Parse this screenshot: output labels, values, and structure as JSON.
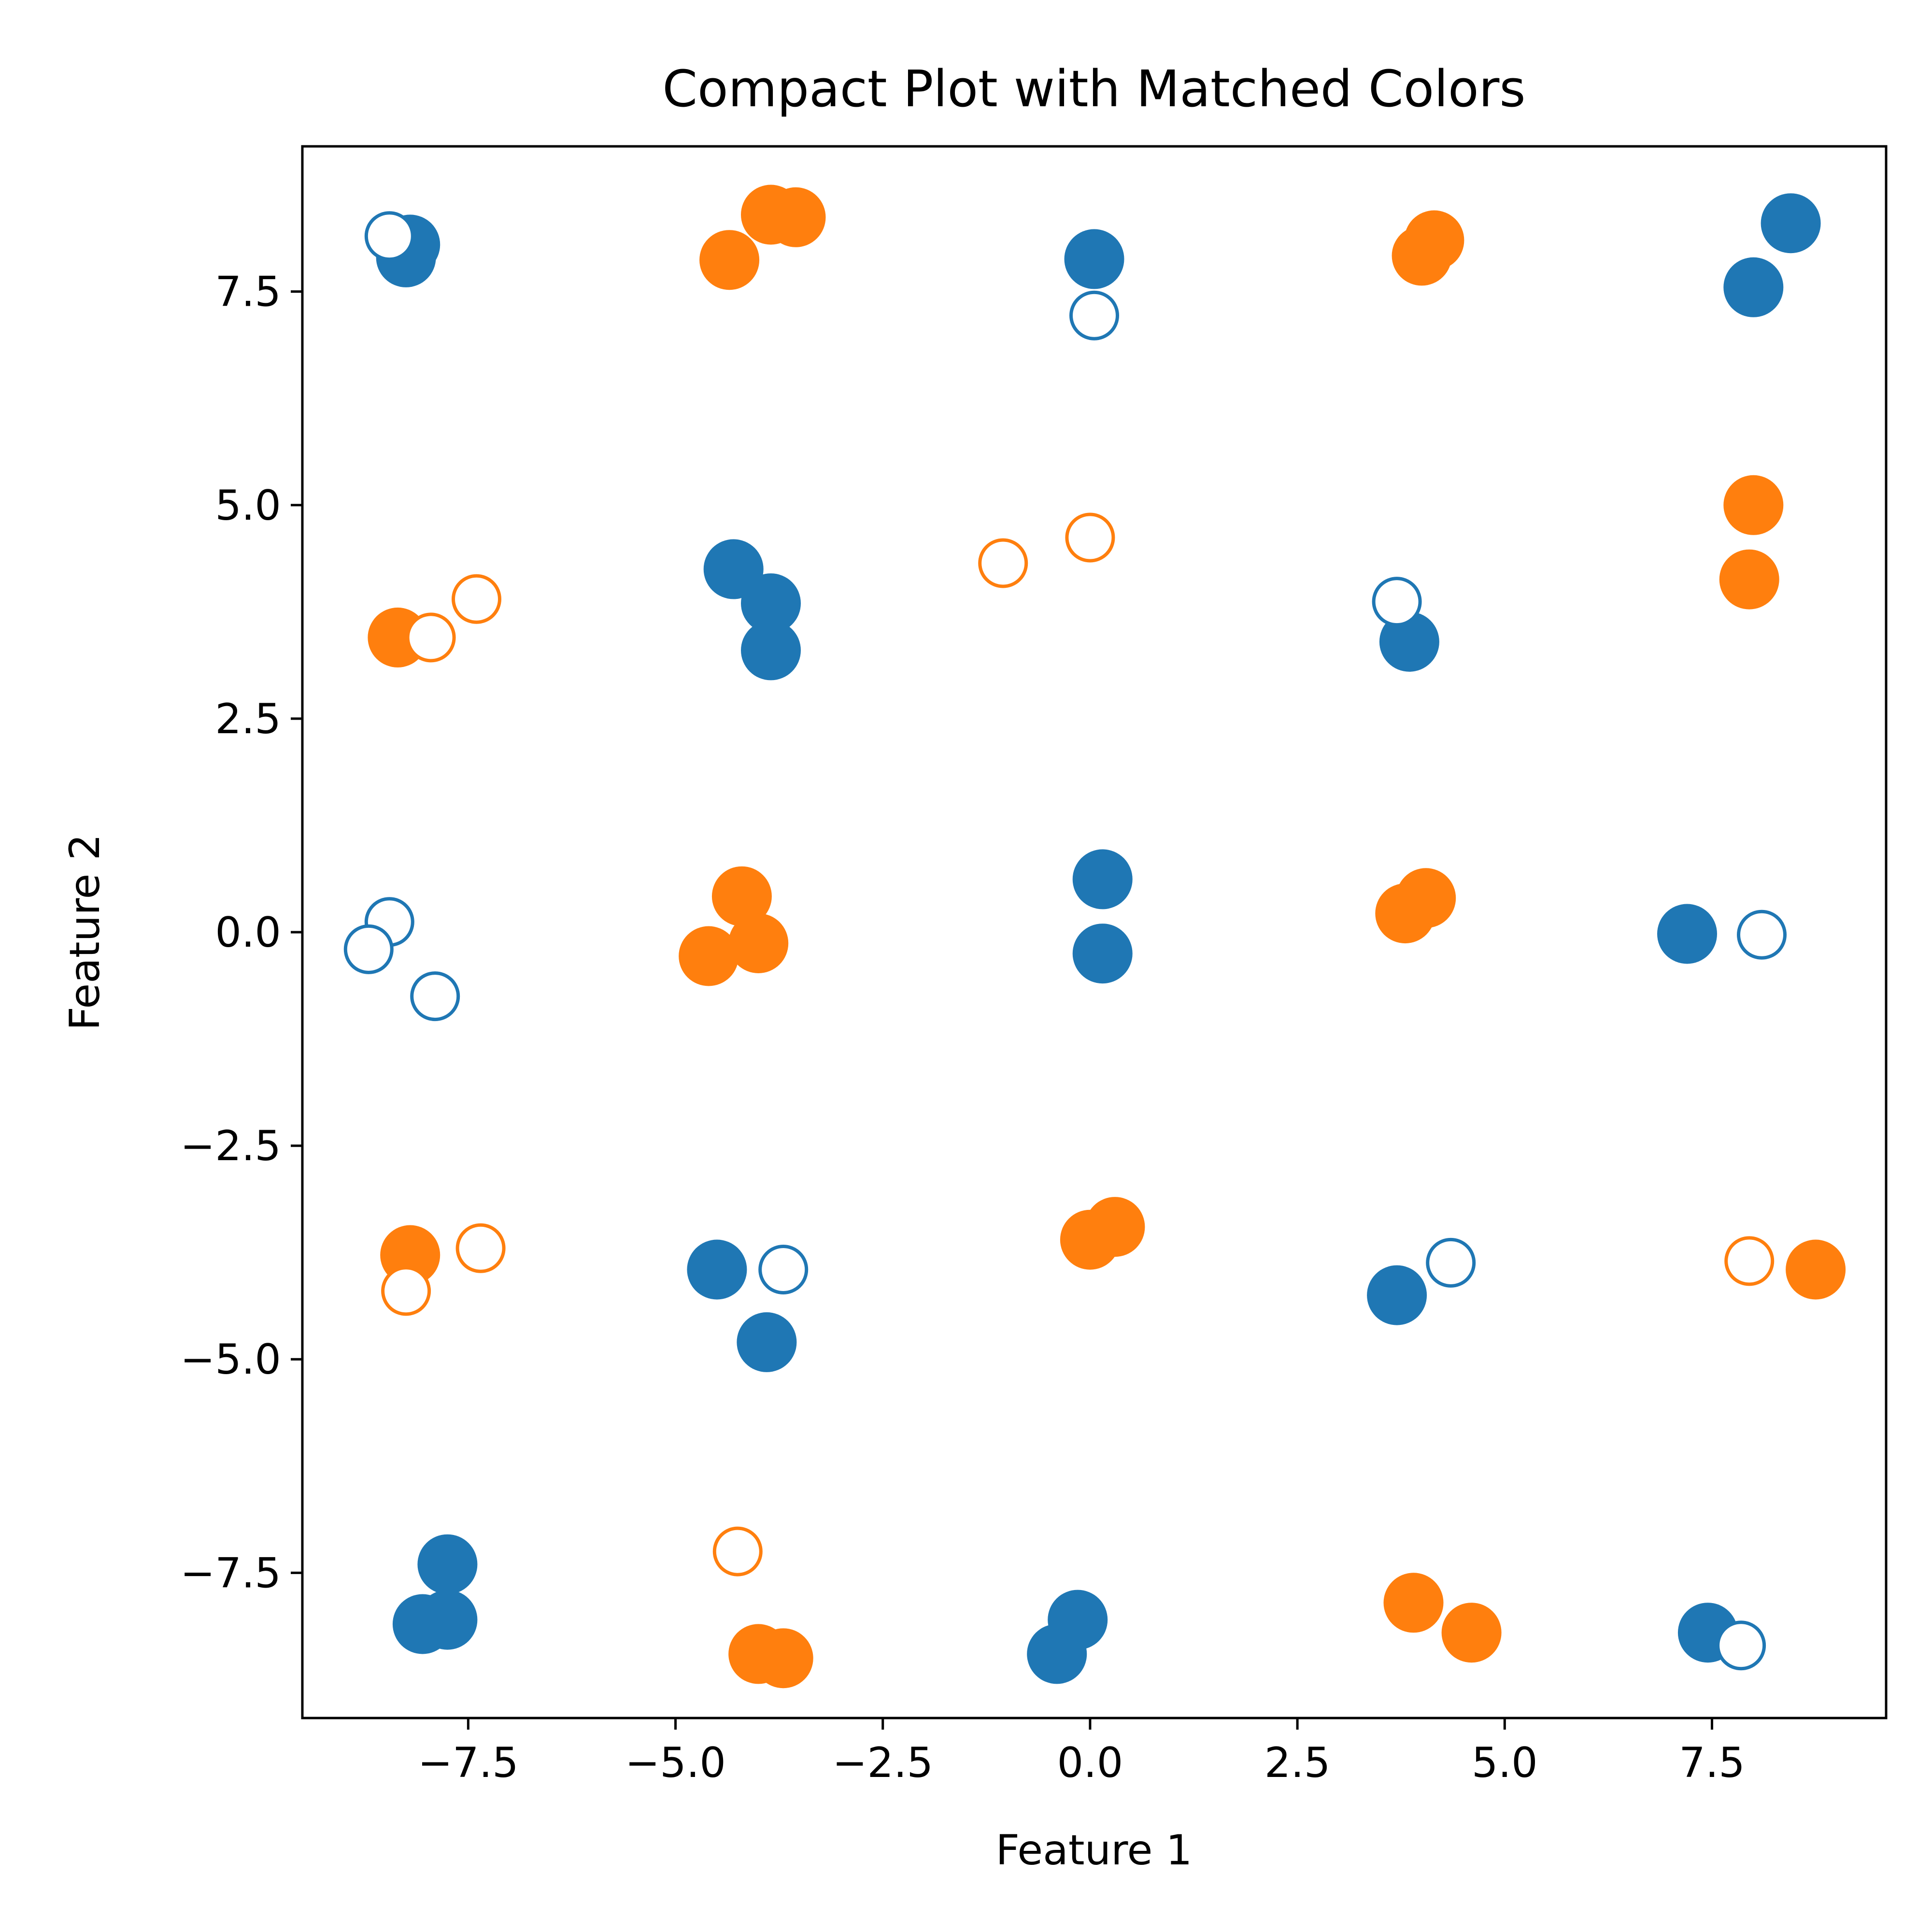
{
  "chart_data": {
    "type": "scatter",
    "title": "Compact Plot with Matched Colors",
    "xlabel": "Feature 1",
    "ylabel": "Feature 2",
    "xlim": [
      -9.5,
      9.6
    ],
    "ylim": [
      -9.2,
      9.2
    ],
    "grid": false,
    "xticks": [
      -7.5,
      -5.0,
      -2.5,
      0.0,
      2.5,
      5.0,
      7.5
    ],
    "yticks": [
      -7.5,
      -5.0,
      -2.5,
      0.0,
      2.5,
      5.0,
      7.5
    ],
    "xtick_labels": [
      "−7.5",
      "−5.0",
      "−2.5",
      "0.0",
      "2.5",
      "5.0",
      "7.5"
    ],
    "ytick_labels": [
      "−7.5",
      "−5.0",
      "−2.5",
      "0.0",
      "2.5",
      "5.0",
      "7.5"
    ],
    "colors": {
      "blue": "#1f77b4",
      "orange": "#ff7f0e"
    },
    "series": [
      {
        "color": "#1f77b4",
        "marker": "filled",
        "points": [
          [
            -8.2,
            8.05
          ],
          [
            -8.25,
            7.9
          ],
          [
            0.05,
            7.88
          ],
          [
            8.45,
            8.3
          ],
          [
            8.0,
            7.55
          ],
          [
            -4.3,
            4.25
          ],
          [
            -3.85,
            3.85
          ],
          [
            -3.85,
            3.3
          ],
          [
            3.85,
            3.4
          ],
          [
            0.15,
            0.62
          ],
          [
            0.15,
            -0.25
          ],
          [
            7.2,
            -0.02
          ],
          [
            -4.5,
            -3.95
          ],
          [
            -3.9,
            -4.8
          ],
          [
            3.7,
            -4.25
          ],
          [
            -7.75,
            -7.4
          ],
          [
            -7.75,
            -8.05
          ],
          [
            -8.05,
            -8.1
          ],
          [
            -0.15,
            -8.05
          ],
          [
            -0.4,
            -8.45
          ],
          [
            7.45,
            -8.2
          ]
        ]
      },
      {
        "color": "#ff7f0e",
        "marker": "filled",
        "points": [
          [
            -4.35,
            7.87
          ],
          [
            -3.85,
            8.4
          ],
          [
            -3.55,
            8.37
          ],
          [
            4.15,
            8.1
          ],
          [
            4.0,
            7.92
          ],
          [
            -8.35,
            3.45
          ],
          [
            8.0,
            5.0
          ],
          [
            7.95,
            4.13
          ],
          [
            -4.2,
            0.42
          ],
          [
            -4.0,
            -0.13
          ],
          [
            -4.6,
            -0.28
          ],
          [
            4.05,
            0.4
          ],
          [
            3.8,
            0.22
          ],
          [
            -8.2,
            -3.78
          ],
          [
            0.3,
            -3.45
          ],
          [
            0.0,
            -3.6
          ],
          [
            8.75,
            -3.95
          ],
          [
            3.9,
            -7.85
          ],
          [
            4.6,
            -8.2
          ],
          [
            -4.0,
            -8.45
          ],
          [
            -3.7,
            -8.5
          ]
        ]
      },
      {
        "color": "#1f77b4",
        "marker": "hollow",
        "points": [
          [
            -8.45,
            8.15
          ],
          [
            0.05,
            7.22
          ],
          [
            3.7,
            3.87
          ],
          [
            -8.45,
            0.12
          ],
          [
            -8.7,
            -0.2
          ],
          [
            -7.9,
            -0.75
          ],
          [
            8.1,
            -0.03
          ],
          [
            -3.7,
            -3.95
          ],
          [
            4.35,
            -3.87
          ],
          [
            7.85,
            -8.35
          ]
        ]
      },
      {
        "color": "#ff7f0e",
        "marker": "hollow",
        "points": [
          [
            -7.95,
            3.45
          ],
          [
            -7.4,
            3.9
          ],
          [
            -1.05,
            4.32
          ],
          [
            0.0,
            4.62
          ],
          [
            -8.25,
            -4.2
          ],
          [
            -7.35,
            -3.7
          ],
          [
            7.95,
            -3.85
          ],
          [
            -4.25,
            -7.25
          ]
        ]
      }
    ]
  }
}
